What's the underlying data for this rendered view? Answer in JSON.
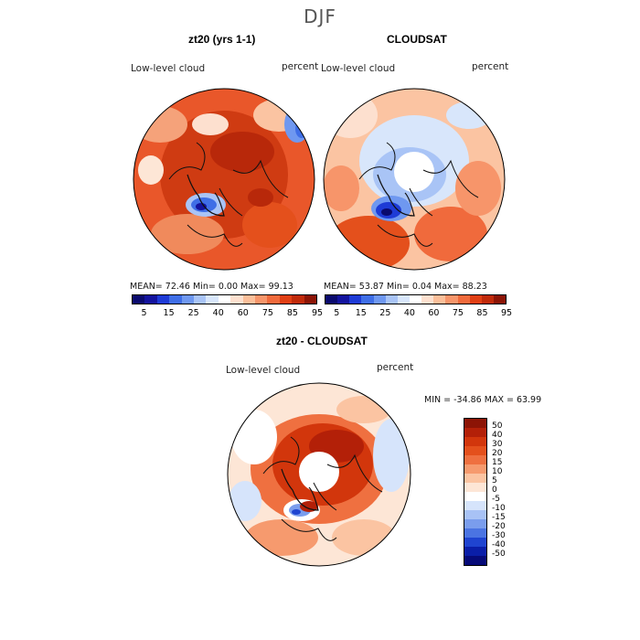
{
  "season": "DJF",
  "panels": {
    "top_left": {
      "title": "zt20 (yrs 1-1)",
      "var_label": "Low-level cloud",
      "units": "percent",
      "stats": "MEAN=  72.46  Min=   0.00  Max=  99.13"
    },
    "top_right": {
      "title": "CLOUDSAT",
      "var_label": "Low-level cloud",
      "units": "percent",
      "stats": "MEAN=  53.87  Min=   0.04  Max=  88.23"
    },
    "bottom": {
      "title": "zt20 - CLOUDSAT",
      "var_label": "Low-level cloud",
      "units": "percent",
      "stats": "MIN = -34.86 MAX =  63.99"
    }
  },
  "colorbar_abs": {
    "ticks": [
      "5",
      "15",
      "25",
      "40",
      "60",
      "75",
      "85",
      "95"
    ],
    "colors": [
      "#0a0a6e",
      "#13139e",
      "#1e3bd6",
      "#3f6ee6",
      "#6f98f0",
      "#a9c4f6",
      "#d8e6fb",
      "#ffffff",
      "#fde0cf",
      "#fbbf9a",
      "#f7956a",
      "#f06a3c",
      "#e03f14",
      "#c02a0a",
      "#8c1405"
    ]
  },
  "colorbar_diff": {
    "labels": [
      "50",
      "40",
      "30",
      "20",
      "15",
      "10",
      "5",
      "0",
      "-5",
      "-10",
      "-15",
      "-20",
      "-30",
      "-40",
      "-50"
    ],
    "colors": [
      "#8c1405",
      "#b32008",
      "#d2360c",
      "#e4501c",
      "#ef7040",
      "#f69a6e",
      "#fbc4a2",
      "#fde6d6",
      "#ffffff",
      "#d6e4fb",
      "#a8c2f5",
      "#7a9ded",
      "#4b74e2",
      "#1f44d0",
      "#0a1ea8",
      "#060a78"
    ]
  }
}
